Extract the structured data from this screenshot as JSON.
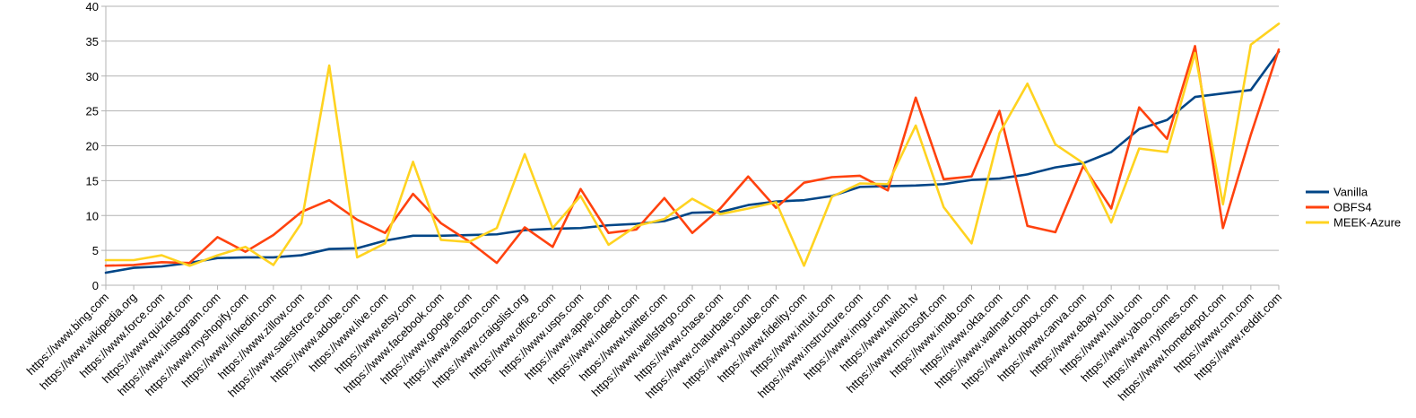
{
  "chart_data": {
    "type": "line",
    "title": "",
    "xlabel": "",
    "ylabel": "",
    "ylim": [
      0,
      40
    ],
    "yticks": [
      0,
      5,
      10,
      15,
      20,
      25,
      30,
      35,
      40
    ],
    "grid": true,
    "legend_position": "right",
    "categories": [
      "https://www.bing.com",
      "https://www.wikipedia.org",
      "https://www.force.com",
      "https://www.quizlet.com",
      "https://www.instagram.com",
      "https://www.myshopify.com",
      "https://www.linkedin.com",
      "https://www.zillow.com",
      "https://www.salesforce.com",
      "https://www.adobe.com",
      "https://www.live.com",
      "https://www.etsy.com",
      "https://www.facebook.com",
      "https://www.google.com",
      "https://www.amazon.com",
      "https://www.craigslist.org",
      "https://www.office.com",
      "https://www.usps.com",
      "https://www.apple.com",
      "https://www.indeed.com",
      "https://www.twitter.com",
      "https://www.wellsfargo.com",
      "https://www.chase.com",
      "https://www.chaturbate.com",
      "https://www.youtube.com",
      "https://www.fidelity.com",
      "https://www.intuit.com",
      "https://www.instructure.com",
      "https://www.imgur.com",
      "https://www.twitch.tv",
      "https://www.microsoft.com",
      "https://www.imdb.com",
      "https://www.okta.com",
      "https://www.walmart.com",
      "https://www.dropbox.com",
      "https://www.canva.com",
      "https://www.ebay.com",
      "https://www.hulu.com",
      "https://www.yahoo.com",
      "https://www.nytimes.com",
      "https://www.homedepot.com",
      "https://www.cnn.com",
      "https://www.reddit.com"
    ],
    "series": [
      {
        "name": "Vanilla",
        "color": "#004586",
        "values": [
          1.8,
          2.5,
          2.7,
          3.2,
          3.9,
          4.0,
          4.0,
          4.3,
          5.2,
          5.3,
          6.4,
          7.1,
          7.1,
          7.2,
          7.3,
          7.9,
          8.1,
          8.2,
          8.6,
          8.8,
          9.2,
          10.4,
          10.5,
          11.5,
          12.0,
          12.2,
          12.8,
          14.1,
          14.2,
          14.3,
          14.5,
          15.1,
          15.3,
          15.9,
          16.9,
          17.5,
          19.1,
          22.4,
          23.7,
          27.0,
          27.5,
          28.0,
          33.5
        ]
      },
      {
        "name": "OBFS4",
        "color": "#ff420e",
        "values": [
          2.8,
          2.9,
          3.3,
          3.2,
          6.9,
          4.8,
          7.2,
          10.5,
          12.2,
          9.4,
          7.5,
          13.1,
          8.9,
          6.3,
          3.2,
          8.3,
          5.5,
          13.8,
          7.5,
          8.0,
          12.5,
          7.5,
          11.0,
          15.6,
          11.1,
          14.7,
          15.5,
          15.7,
          13.6,
          26.9,
          15.2,
          15.6,
          25.0,
          8.5,
          7.6,
          17.1,
          11.0,
          25.5,
          21.0,
          34.3,
          8.2,
          21.6,
          33.8
        ]
      },
      {
        "name": "MEEK-Azure",
        "color": "#ffd320",
        "values": [
          3.6,
          3.6,
          4.3,
          2.8,
          4.3,
          5.5,
          2.9,
          8.9,
          31.5,
          4.0,
          6.0,
          17.7,
          6.5,
          6.2,
          8.2,
          18.8,
          8.2,
          12.8,
          5.8,
          8.5,
          9.5,
          12.4,
          10.2,
          11.0,
          11.9,
          2.8,
          12.7,
          14.6,
          14.5,
          22.9,
          11.2,
          6.0,
          21.8,
          28.9,
          20.2,
          17.5,
          9.0,
          19.6,
          19.1,
          33.3,
          11.6,
          34.5,
          37.5
        ]
      }
    ]
  }
}
